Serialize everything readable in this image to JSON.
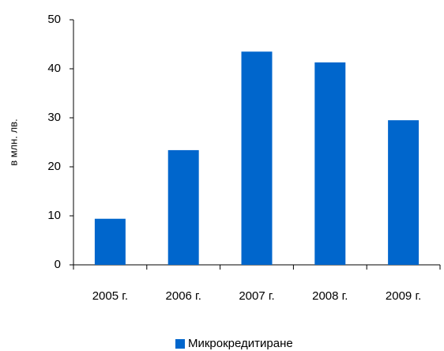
{
  "chart_data": {
    "type": "bar",
    "y_label": "в млн. лв.",
    "categories": [
      "2005 г.",
      "2006 г.",
      "2007 г.",
      "2008 г.",
      "2009 г."
    ],
    "series": [
      {
        "name": "Микрокредитиране",
        "color": "#0066cc",
        "values": [
          9.4,
          23.4,
          43.5,
          41.3,
          29.5
        ]
      }
    ],
    "ylim": [
      0,
      50
    ],
    "yticks": [
      0,
      10,
      20,
      30,
      40,
      50
    ],
    "grid": false,
    "legend": "bottom"
  }
}
